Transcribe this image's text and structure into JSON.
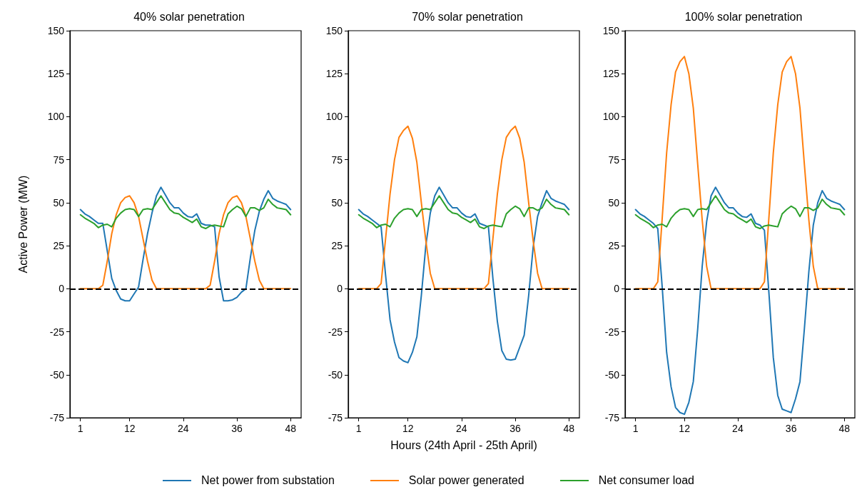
{
  "chart_data": [
    {
      "type": "line",
      "title": "40% solar penetration",
      "ylabel": "Active Power (MW)",
      "legend": "bottom",
      "x": [
        1,
        2,
        3,
        4,
        5,
        6,
        7,
        8,
        9,
        10,
        11,
        12,
        13,
        14,
        15,
        16,
        17,
        18,
        19,
        20,
        21,
        22,
        23,
        24,
        25,
        26,
        27,
        28,
        29,
        30,
        31,
        32,
        33,
        34,
        35,
        36,
        37,
        38,
        39,
        40,
        41,
        42,
        43,
        44,
        45,
        46,
        47,
        48
      ],
      "xlim": [
        -1.35,
        50.35
      ],
      "xticks": [
        1,
        12,
        24,
        36,
        48
      ],
      "ylim": [
        -75,
        150
      ],
      "yticks": [
        -75,
        -50,
        -25,
        0,
        25,
        50,
        75,
        100,
        125,
        150
      ],
      "grid": false,
      "marker": "none",
      "ref_lines": [
        {
          "axis": "y",
          "value": 0,
          "color": "#000000",
          "line_style": "dashed"
        }
      ],
      "series": [
        {
          "name": "Net power from substation",
          "color": "#1f77b4",
          "values": [
            46,
            43.5,
            42,
            40,
            38,
            38,
            22,
            6,
            -1,
            -6,
            -7,
            -7,
            -3,
            1,
            17,
            32,
            44,
            54,
            59,
            54.5,
            50,
            47,
            47,
            44,
            42,
            41.5,
            43.5,
            38,
            37,
            37,
            36,
            7,
            -7,
            -7,
            -6.5,
            -5,
            -2,
            0,
            18,
            34,
            45,
            52,
            57,
            52.5,
            51,
            50,
            49,
            46
          ]
        },
        {
          "name": "Solar power generated",
          "color": "#ff7f0e",
          "values": [
            0,
            0,
            0,
            0,
            0,
            2,
            16,
            32,
            43,
            50,
            53,
            54,
            50,
            42,
            29,
            16,
            5,
            0,
            0,
            0,
            0,
            0,
            0,
            0,
            0,
            0,
            0,
            0,
            0,
            2,
            16,
            32,
            43,
            50,
            53,
            54,
            50,
            42,
            29,
            16,
            5,
            0,
            0,
            0,
            0,
            0,
            0,
            0
          ]
        },
        {
          "name": "Net consumer load",
          "color": "#2ca02c",
          "values": [
            43,
            41,
            39.5,
            38,
            35.5,
            37,
            37.5,
            36,
            41,
            44,
            46,
            46.5,
            46,
            42,
            46,
            46.5,
            46,
            50,
            54,
            50,
            46,
            44,
            43.5,
            41.5,
            40,
            38.5,
            40.5,
            36,
            35,
            36.5,
            37,
            36.5,
            36,
            43.5,
            46,
            48,
            46.5,
            42,
            47,
            47,
            45.5,
            47,
            52,
            49,
            47,
            46.5,
            46,
            43
          ]
        }
      ]
    },
    {
      "type": "line",
      "title": "70% solar penetration",
      "xlabel": "Hours (24th April - 25th April)",
      "x": [
        1,
        2,
        3,
        4,
        5,
        6,
        7,
        8,
        9,
        10,
        11,
        12,
        13,
        14,
        15,
        16,
        17,
        18,
        19,
        20,
        21,
        22,
        23,
        24,
        25,
        26,
        27,
        28,
        29,
        30,
        31,
        32,
        33,
        34,
        35,
        36,
        37,
        38,
        39,
        40,
        41,
        42,
        43,
        44,
        45,
        46,
        47,
        48
      ],
      "xlim": [
        -1.35,
        50.35
      ],
      "xticks": [
        1,
        12,
        24,
        36,
        48
      ],
      "ylim": [
        -75,
        150
      ],
      "yticks": [
        -75,
        -50,
        -25,
        0,
        25,
        50,
        75,
        100,
        125,
        150
      ],
      "grid": false,
      "marker": "none",
      "ref_lines": [
        {
          "axis": "y",
          "value": 0,
          "color": "#000000",
          "line_style": "dashed"
        }
      ],
      "series": [
        {
          "color": "#1f77b4",
          "values": [
            46,
            43.5,
            42,
            40,
            38,
            36,
            8,
            -18,
            -31,
            -40,
            -42,
            -43,
            -37,
            -28,
            -4,
            25,
            44,
            54,
            59,
            54.5,
            50,
            47,
            47,
            44,
            42,
            41.5,
            43.5,
            38,
            37,
            36,
            6,
            -19,
            -36,
            -41,
            -41.5,
            -41,
            -34,
            -27,
            -4,
            24,
            42,
            50,
            57,
            52.5,
            51,
            50,
            49,
            46
          ]
        },
        {
          "color": "#ff7f0e",
          "values": [
            0,
            0,
            0,
            0,
            0,
            3,
            29,
            55,
            75,
            88,
            92,
            94.5,
            87.5,
            73.5,
            50,
            28,
            9,
            0,
            0,
            0,
            0,
            0,
            0,
            0,
            0,
            0,
            0,
            0,
            0,
            3,
            29,
            55,
            75,
            88,
            92,
            94.5,
            87.5,
            73.5,
            50,
            28,
            9,
            0,
            0,
            0,
            0,
            0,
            0,
            0
          ]
        },
        {
          "color": "#2ca02c",
          "values": [
            43,
            41,
            39.5,
            38,
            35.5,
            37,
            37.5,
            36,
            41,
            44,
            46,
            46.5,
            46,
            42,
            46,
            46.5,
            46,
            50,
            54,
            50,
            46,
            44,
            43.5,
            41.5,
            40,
            38.5,
            40.5,
            36,
            35,
            36.5,
            37,
            36.5,
            36,
            43.5,
            46,
            48,
            46.5,
            42,
            47,
            47,
            45.5,
            47,
            52,
            49,
            47,
            46.5,
            46,
            43
          ]
        }
      ]
    },
    {
      "type": "line",
      "title": "100% solar penetration",
      "x": [
        1,
        2,
        3,
        4,
        5,
        6,
        7,
        8,
        9,
        10,
        11,
        12,
        13,
        14,
        15,
        16,
        17,
        18,
        19,
        20,
        21,
        22,
        23,
        24,
        25,
        26,
        27,
        28,
        29,
        30,
        31,
        32,
        33,
        34,
        35,
        36,
        37,
        38,
        39,
        40,
        41,
        42,
        43,
        44,
        45,
        46,
        47,
        48
      ],
      "xlim": [
        -1.35,
        50.35
      ],
      "xticks": [
        1,
        12,
        24,
        36,
        48
      ],
      "ylim": [
        -75,
        150
      ],
      "yticks": [
        -75,
        -50,
        -25,
        0,
        25,
        50,
        75,
        100,
        125,
        150
      ],
      "grid": false,
      "marker": "none",
      "ref_lines": [
        {
          "axis": "y",
          "value": 0,
          "color": "#000000",
          "line_style": "dashed"
        }
      ],
      "series": [
        {
          "color": "#1f77b4",
          "values": [
            46,
            43.5,
            42,
            40,
            38,
            35,
            1,
            -37,
            -57,
            -69,
            -72,
            -73,
            -66,
            -54,
            -23,
            13,
            39,
            54,
            59,
            54.5,
            50,
            47,
            47,
            44,
            42,
            41.5,
            43.5,
            38,
            37,
            34,
            -2,
            -40,
            -62,
            -70,
            -71,
            -72,
            -64,
            -54,
            -23,
            10,
            37,
            50,
            57,
            52.5,
            51,
            50,
            49,
            46
          ]
        },
        {
          "color": "#ff7f0e",
          "values": [
            0,
            0,
            0,
            0,
            0,
            4,
            41,
            79,
            107,
            126,
            132,
            135,
            125,
            105,
            72,
            40,
            13,
            0,
            0,
            0,
            0,
            0,
            0,
            0,
            0,
            0,
            0,
            0,
            0,
            4,
            41,
            79,
            107,
            126,
            132,
            135,
            125,
            105,
            72,
            40,
            13,
            0,
            0,
            0,
            0,
            0,
            0,
            0
          ]
        },
        {
          "color": "#2ca02c",
          "values": [
            43,
            41,
            39.5,
            38,
            35.5,
            37,
            37.5,
            36,
            41,
            44,
            46,
            46.5,
            46,
            42,
            46,
            46.5,
            46,
            50,
            54,
            50,
            46,
            44,
            43.5,
            41.5,
            40,
            38.5,
            40.5,
            36,
            35,
            36.5,
            37,
            36.5,
            36,
            43.5,
            46,
            48,
            46.5,
            42,
            47,
            47,
            45.5,
            47,
            52,
            49,
            47,
            46.5,
            46,
            43
          ]
        }
      ]
    }
  ]
}
